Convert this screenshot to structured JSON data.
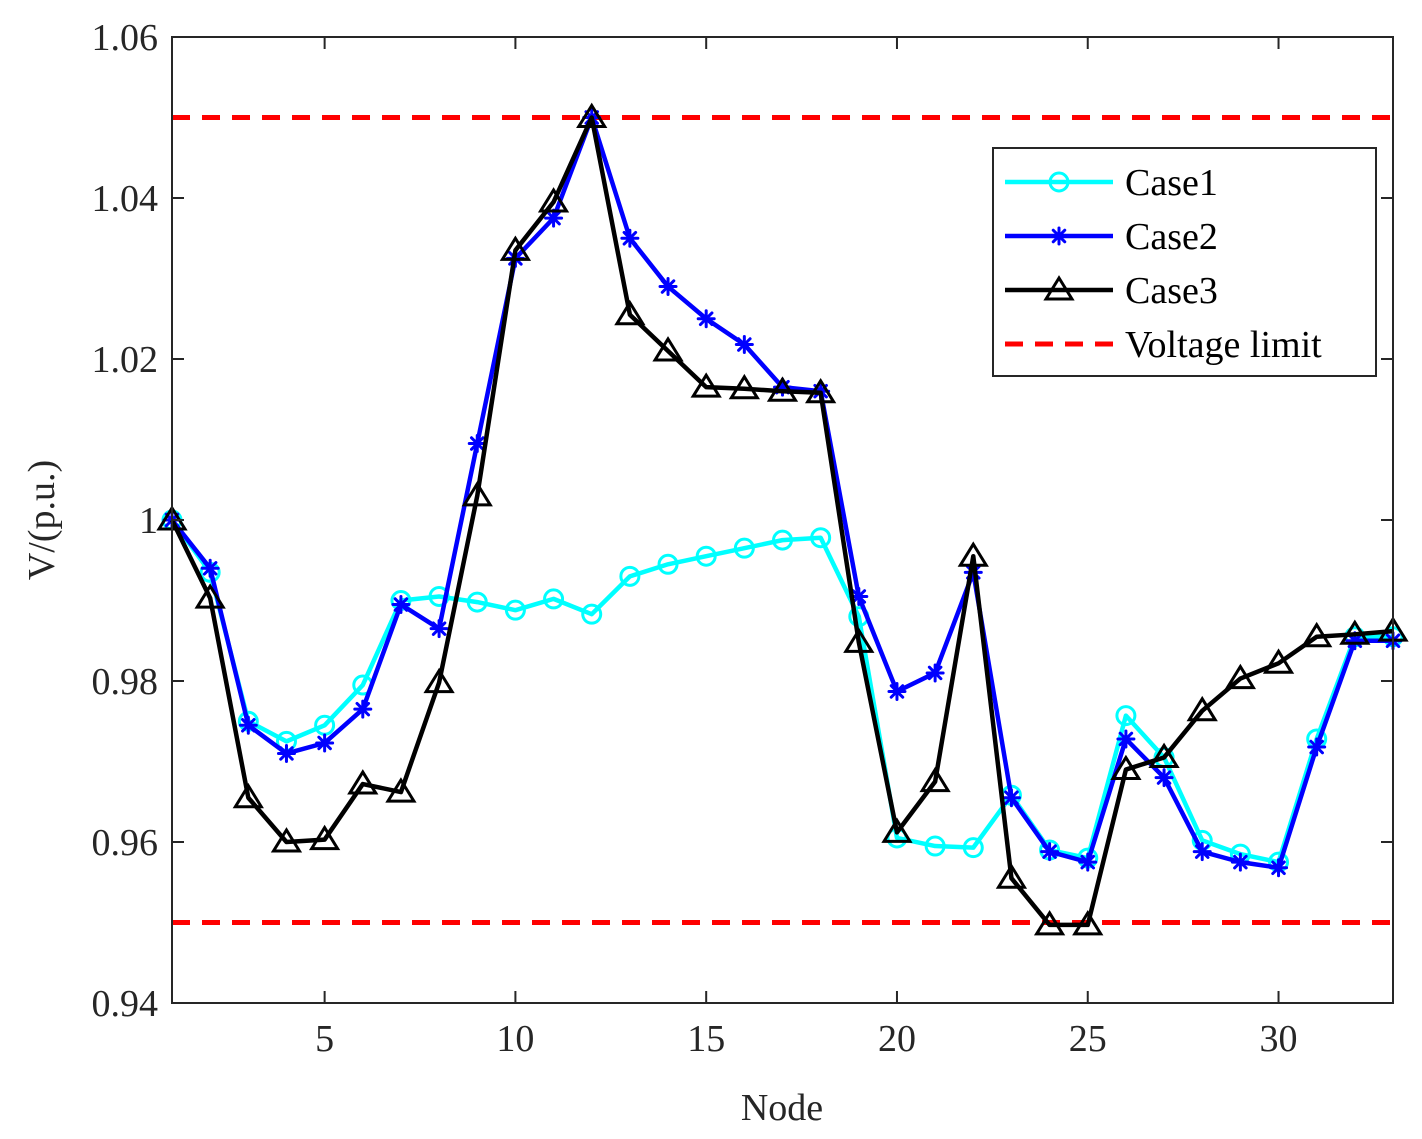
{
  "chart_data": {
    "type": "line",
    "title": "",
    "xlabel": "Node",
    "ylabel": "V/(p.u.)",
    "xlim": [
      1,
      33
    ],
    "ylim": [
      0.94,
      1.06
    ],
    "xticks": [
      5,
      10,
      15,
      20,
      25,
      30
    ],
    "xtick_labels": [
      "5",
      "10",
      "15",
      "20",
      "25",
      "30"
    ],
    "yticks": [
      0.94,
      0.96,
      0.98,
      1.0,
      1.02,
      1.04,
      1.06
    ],
    "ytick_labels": [
      "0.94",
      "0.96",
      "0.98",
      "1",
      "1.02",
      "1.04",
      "1.06"
    ],
    "grid": false,
    "legend_position": "top-right",
    "x": [
      1,
      2,
      3,
      4,
      5,
      6,
      7,
      8,
      9,
      10,
      11,
      12,
      13,
      14,
      15,
      16,
      17,
      18,
      19,
      20,
      21,
      22,
      23,
      24,
      25,
      26,
      27,
      28,
      29,
      30,
      31,
      32,
      33
    ],
    "series": [
      {
        "name": "Case1",
        "color": "#00ffff",
        "marker": "circle",
        "values": [
          1.0,
          0.9935,
          0.975,
          0.9725,
          0.9745,
          0.9795,
          0.99,
          0.9905,
          0.9898,
          0.9888,
          0.9902,
          0.9883,
          0.993,
          0.9945,
          0.9955,
          0.9965,
          0.9975,
          0.9978,
          0.988,
          0.9605,
          0.9595,
          0.9593,
          0.9658,
          0.959,
          0.958,
          0.9757,
          0.9705,
          0.9602,
          0.9585,
          0.9575,
          0.9728,
          0.9855,
          0.9855
        ]
      },
      {
        "name": "Case2",
        "color": "#0000ff",
        "marker": "star",
        "values": [
          1.0,
          0.994,
          0.9745,
          0.971,
          0.9723,
          0.9765,
          0.9895,
          0.9865,
          1.0095,
          1.0325,
          1.0375,
          1.05,
          1.035,
          1.029,
          1.025,
          1.0218,
          1.0165,
          1.016,
          0.9905,
          0.9787,
          0.981,
          0.9935,
          0.9655,
          0.9588,
          0.9575,
          0.9728,
          0.968,
          0.9588,
          0.9575,
          0.9568,
          0.9718,
          0.985,
          0.985
        ]
      },
      {
        "name": "Case3",
        "color": "#000000",
        "marker": "triangle",
        "values": [
          1.0,
          0.9903,
          0.9655,
          0.96,
          0.9603,
          0.9672,
          0.9662,
          0.9798,
          1.003,
          1.0335,
          1.0395,
          1.05,
          1.0255,
          1.021,
          1.0165,
          1.0163,
          1.016,
          1.0158,
          0.9848,
          0.9612,
          0.9675,
          0.9955,
          0.9555,
          0.9497,
          0.9497,
          0.969,
          0.9705,
          0.9763,
          0.9803,
          0.9822,
          0.9855,
          0.9858,
          0.9862
        ]
      }
    ],
    "limits": {
      "name": "Voltage limit",
      "color": "#ff0000",
      "style": "dashed",
      "upper": 1.05,
      "lower": 0.95
    }
  }
}
